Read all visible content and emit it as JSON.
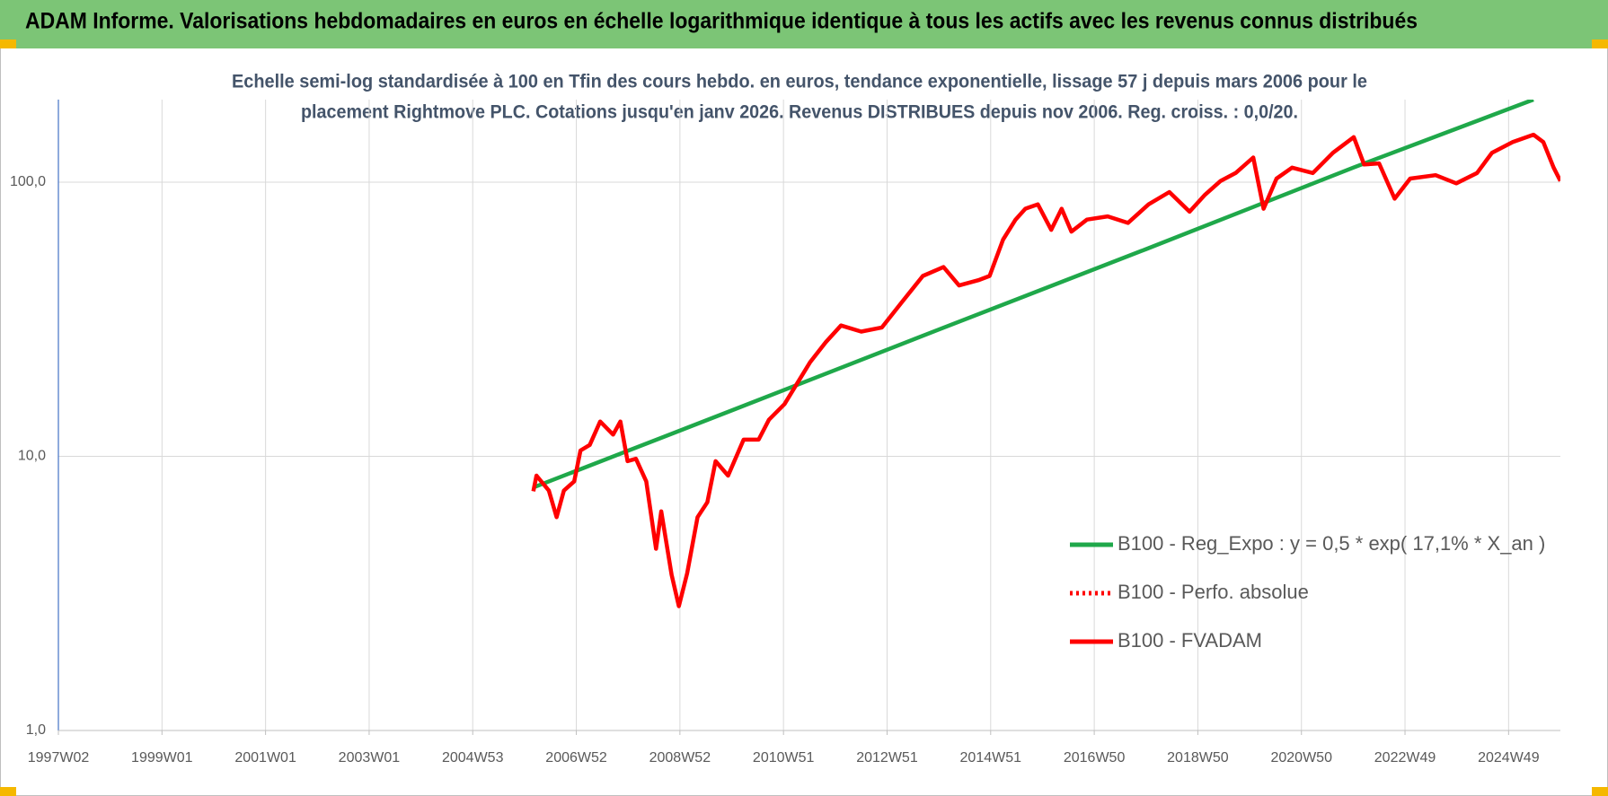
{
  "chart_data": {
    "type": "line",
    "title": "ADAM Informe. Valorisations hebdomadaires en euros en échelle logarithmique identique à tous les actifs avec les revenus connus distribués",
    "subtitle": [
      "Echelle semi-log standardisée à 100 en Tfin des cours hebdo. en euros, tendance exponentielle, lissage 57 j depuis mars 2006 pour le",
      "placement Rightmove PLC. Cotations jusqu'en janv 2026. Revenus DISTRIBUES depuis nov 2006. Reg. croiss. : 0,0/20."
    ],
    "log_y": true,
    "grid": true,
    "legend": "lower-right",
    "xlim": [
      1997,
      2026
    ],
    "xticks": [
      {
        "value": 1997,
        "label": "1997W02"
      },
      {
        "value": 1999,
        "label": "1999W01"
      },
      {
        "value": 2001,
        "label": "2001W01"
      },
      {
        "value": 2003,
        "label": "2003W01"
      },
      {
        "value": 2005,
        "label": "2004W53"
      },
      {
        "value": 2007,
        "label": "2006W52"
      },
      {
        "value": 2009,
        "label": "2008W52"
      },
      {
        "value": 2011,
        "label": "2010W51"
      },
      {
        "value": 2013,
        "label": "2012W51"
      },
      {
        "value": 2015,
        "label": "2014W51"
      },
      {
        "value": 2017,
        "label": "2016W50"
      },
      {
        "value": 2019,
        "label": "2018W50"
      },
      {
        "value": 2021,
        "label": "2020W50"
      },
      {
        "value": 2023,
        "label": "2022W49"
      },
      {
        "value": 2025,
        "label": "2024W49"
      }
    ],
    "ylim": [
      1,
      200
    ],
    "yticks": [
      {
        "value": 1,
        "label": "1,0"
      },
      {
        "value": 10,
        "label": "10,0"
      },
      {
        "value": 100,
        "label": "100,0"
      }
    ],
    "series": [
      {
        "name": "B100 - Reg_Expo : y = 0,5 * exp( 17,1% *  X_an )",
        "color": "#1fa84a",
        "line_style": "solid",
        "x": [
          2006.17,
          2010,
          2014,
          2018,
          2022,
          2025.48
        ],
        "values": [
          7.7,
          14.7,
          29,
          57,
          113,
          200
        ]
      },
      {
        "name": "B100 - Perfo. absolue",
        "color": "#ff0000",
        "line_style": "dotted",
        "x": [],
        "values": []
      },
      {
        "name": "B100 - FVADAM",
        "color": "#ff0000",
        "line_style": "solid",
        "x": [
          2006.17,
          2006.23,
          2006.47,
          2006.62,
          2006.76,
          2006.96,
          2007.08,
          2007.26,
          2007.46,
          2007.71,
          2007.85,
          2007.99,
          2008.15,
          2008.35,
          2008.54,
          2008.64,
          2008.84,
          2008.98,
          2009.14,
          2009.34,
          2009.53,
          2009.69,
          2009.93,
          2010.23,
          2010.52,
          2010.72,
          2011.02,
          2011.32,
          2011.51,
          2011.81,
          2012.11,
          2012.5,
          2012.9,
          2013.3,
          2013.69,
          2014.09,
          2014.39,
          2014.78,
          2014.98,
          2015.24,
          2015.48,
          2015.67,
          2015.91,
          2016.17,
          2016.37,
          2016.56,
          2016.86,
          2017.26,
          2017.65,
          2018.05,
          2018.45,
          2018.84,
          2019.14,
          2019.44,
          2019.73,
          2020.07,
          2020.27,
          2020.52,
          2020.82,
          2021.22,
          2021.61,
          2022.01,
          2022.21,
          2022.5,
          2022.8,
          2023.1,
          2023.59,
          2023.99,
          2024.39,
          2024.68,
          2025.08,
          2025.48,
          2025.67,
          2025.87,
          2026.0
        ],
        "values": [
          7.46,
          8.5,
          7.5,
          6.0,
          7.5,
          8.1,
          10.5,
          11,
          13.4,
          12,
          13.4,
          9.6,
          9.8,
          8.1,
          4.6,
          6.3,
          3.7,
          2.84,
          3.74,
          6.0,
          6.8,
          9.6,
          8.5,
          11.5,
          11.5,
          13.6,
          15.5,
          19.2,
          22,
          26,
          30,
          28.5,
          29.5,
          36.8,
          45.5,
          49,
          42,
          44,
          45.5,
          61.7,
          73,
          80,
          83,
          67,
          80,
          66,
          73,
          75,
          71,
          83,
          92,
          78,
          90,
          101,
          108,
          123,
          80,
          103,
          113,
          108,
          128,
          146,
          116,
          117,
          87,
          103,
          106,
          99,
          108,
          128,
          140,
          149,
          140,
          113,
          101
        ]
      }
    ]
  }
}
